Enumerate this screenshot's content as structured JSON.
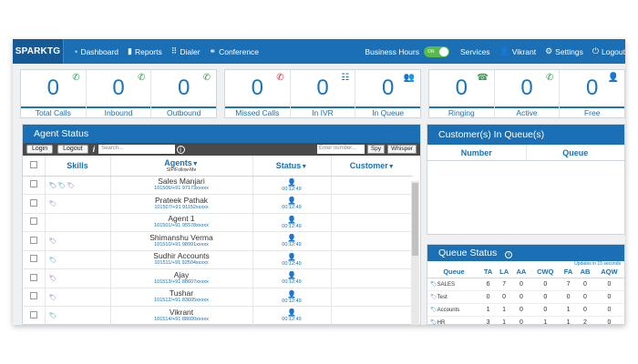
{
  "nav": {
    "brand": "SPARKTG",
    "items": [
      {
        "label": "Dashboard",
        "icon": "dashboard-icon"
      },
      {
        "label": "Reports",
        "icon": "bar-chart-icon"
      },
      {
        "label": "Dialer",
        "icon": "dialpad-icon"
      },
      {
        "label": "Conference",
        "icon": "conference-icon"
      }
    ],
    "business_hours": "Business Hours",
    "toggle": "ON",
    "services": "Services",
    "user": "Vikrant",
    "settings": "Settings",
    "logout": "Logout"
  },
  "stats": {
    "calls": [
      {
        "value": "0",
        "label": "Total Calls",
        "icon": "phone-icon"
      },
      {
        "value": "0",
        "label": "Inbound",
        "icon": "phone-in-icon"
      },
      {
        "value": "0",
        "label": "Outbound",
        "icon": "phone-out-icon"
      }
    ],
    "missed": [
      {
        "value": "0",
        "label": "Missed Calls",
        "icon": "missed-call-icon"
      },
      {
        "value": "0",
        "label": "In IVR",
        "icon": "ivr-icon"
      },
      {
        "value": "0",
        "label": "In Queue",
        "icon": "queue-people-icon"
      }
    ],
    "agents": [
      {
        "value": "0",
        "label": "Ringing",
        "icon": "ringing-phone-icon"
      },
      {
        "value": "0",
        "label": "Active",
        "icon": "active-phone-icon"
      },
      {
        "value": "0",
        "label": "Free",
        "icon": "free-agent-icon"
      }
    ]
  },
  "agent_panel": {
    "title": "Agent Status",
    "login": "Login",
    "logout": "Logout",
    "search_placeholder": "Search...",
    "number_placeholder": "Enter number...",
    "spy": "Spy",
    "whisper": "Whisper",
    "columns": {
      "skills": "Skills",
      "agents": "Agents",
      "agents_sub": "SIP/Follow-Me",
      "status": "Status",
      "customer": "Customer"
    },
    "rows": [
      {
        "name": "Sales Manjari",
        "sip": "101506/+91 97173xxxxx",
        "time": "00:12:49",
        "tags": 3
      },
      {
        "name": "Prateek Pathak",
        "sip": "101507/+91 91152xxxxx",
        "time": "00:12:49",
        "tags": 1
      },
      {
        "name": "Agent 1",
        "sip": "101501/+91 95578xxxxx",
        "time": "00:12:49",
        "tags": 0
      },
      {
        "name": "Shimanshu Verma",
        "sip": "101510/+91 98991xxxxx",
        "time": "00:12:49",
        "tags": 1
      },
      {
        "name": "Sudhir Accounts",
        "sip": "101511/+91 92504xxxxx",
        "time": "00:12:49",
        "tags": 1
      },
      {
        "name": "Ajay",
        "sip": "101513/+91 88607xxxxx",
        "time": "00:12:49",
        "tags": 1
      },
      {
        "name": "Tushar",
        "sip": "101512/+91 83605xxxxx",
        "time": "00:12:49",
        "tags": 1
      },
      {
        "name": "Vikrant",
        "sip": "101514/+91 88600xxxxx",
        "time": "00:12:49",
        "tags": 1
      }
    ]
  },
  "customers_panel": {
    "title": "Customer(s) In Queue(s)",
    "col_number": "Number",
    "col_queue": "Queue"
  },
  "queue_panel": {
    "title": "Queue Status",
    "note": "Updates in 15 seconds",
    "columns": [
      "Queue",
      "TA",
      "LA",
      "AA",
      "CWQ",
      "FA",
      "AB",
      "AQW"
    ],
    "rows": [
      {
        "name": "SALES",
        "values": [
          "6",
          "7",
          "0",
          "0",
          "7",
          "0",
          "0"
        ]
      },
      {
        "name": "Test",
        "values": [
          "0",
          "0",
          "0",
          "0",
          "0",
          "0",
          "0"
        ]
      },
      {
        "name": "Accounts",
        "values": [
          "1",
          "1",
          "0",
          "0",
          "1",
          "0",
          "0"
        ]
      },
      {
        "name": "HR",
        "values": [
          "3",
          "1",
          "0",
          "1",
          "1",
          "2",
          "0"
        ]
      }
    ]
  },
  "colors": {
    "primary": "#1a6fb5",
    "accent_green": "#59b94a",
    "dark_toolbar": "#4a4a4a"
  }
}
